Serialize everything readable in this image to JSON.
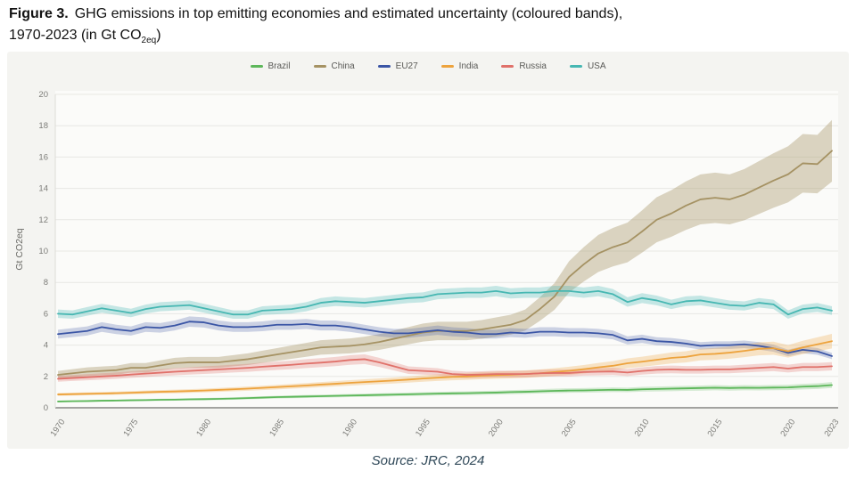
{
  "header": {
    "figure_label": "Figure 3.",
    "title_line1": "GHG emissions in top emitting economies and estimated uncertainty (coloured bands),",
    "title_line2_pre": "1970-2023 (in Gt CO",
    "title_line2_sub": "2eq",
    "title_line2_post": ")"
  },
  "footer": {
    "source": "Source: JRC, 2024"
  },
  "chart_data": {
    "type": "line",
    "title": "GHG emissions in top emitting economies and estimated uncertainty (coloured bands), 1970-2023 (in Gt CO2eq)",
    "xlabel": "",
    "ylabel": "Gt CO2eq",
    "ylim": [
      0,
      20
    ],
    "yticks": [
      0,
      2,
      4,
      6,
      8,
      10,
      12,
      14,
      16,
      18,
      20
    ],
    "xticks": [
      1970,
      1975,
      1980,
      1985,
      1990,
      1995,
      2000,
      2005,
      2010,
      2015,
      2020,
      2023
    ],
    "grid": "horizontal",
    "legend_position": "top-center",
    "uncertainty_bands": true,
    "years": [
      1970,
      1971,
      1972,
      1973,
      1974,
      1975,
      1976,
      1977,
      1978,
      1979,
      1980,
      1981,
      1982,
      1983,
      1984,
      1985,
      1986,
      1987,
      1988,
      1989,
      1990,
      1991,
      1992,
      1993,
      1994,
      1995,
      1996,
      1997,
      1998,
      1999,
      2000,
      2001,
      2002,
      2003,
      2004,
      2005,
      2006,
      2007,
      2008,
      2009,
      2010,
      2011,
      2012,
      2013,
      2014,
      2015,
      2016,
      2017,
      2018,
      2019,
      2020,
      2021,
      2022,
      2023
    ],
    "series": [
      {
        "name": "Brazil",
        "color": "#5db75a",
        "band_pct": 0.13,
        "band_opacity": 0.25,
        "values": [
          0.4,
          0.42,
          0.43,
          0.45,
          0.46,
          0.48,
          0.49,
          0.51,
          0.52,
          0.54,
          0.55,
          0.57,
          0.59,
          0.62,
          0.65,
          0.68,
          0.7,
          0.72,
          0.74,
          0.76,
          0.78,
          0.8,
          0.82,
          0.84,
          0.86,
          0.88,
          0.9,
          0.92,
          0.93,
          0.95,
          0.97,
          1.0,
          1.02,
          1.05,
          1.08,
          1.1,
          1.11,
          1.13,
          1.15,
          1.14,
          1.18,
          1.2,
          1.22,
          1.24,
          1.26,
          1.28,
          1.26,
          1.28,
          1.27,
          1.29,
          1.3,
          1.35,
          1.38,
          1.45
        ]
      },
      {
        "name": "China",
        "color": "#a59263",
        "band_pct": 0.12,
        "band_opacity": 0.38,
        "values": [
          2.1,
          2.2,
          2.3,
          2.35,
          2.4,
          2.55,
          2.55,
          2.7,
          2.85,
          2.9,
          2.9,
          2.9,
          3.0,
          3.1,
          3.25,
          3.4,
          3.55,
          3.7,
          3.85,
          3.9,
          3.95,
          4.05,
          4.2,
          4.4,
          4.6,
          4.8,
          4.9,
          4.9,
          4.9,
          5.0,
          5.15,
          5.3,
          5.6,
          6.3,
          7.1,
          8.35,
          9.15,
          9.85,
          10.25,
          10.55,
          11.25,
          12.0,
          12.4,
          12.9,
          13.3,
          13.4,
          13.3,
          13.6,
          14.05,
          14.5,
          14.9,
          15.6,
          15.55,
          16.4
        ]
      },
      {
        "name": "EU27",
        "color": "#3a55a5",
        "band_pct": 0.06,
        "band_opacity": 0.25,
        "values": [
          4.7,
          4.8,
          4.9,
          5.15,
          5.0,
          4.9,
          5.15,
          5.1,
          5.25,
          5.5,
          5.45,
          5.25,
          5.15,
          5.15,
          5.2,
          5.3,
          5.3,
          5.35,
          5.25,
          5.25,
          5.15,
          5.0,
          4.85,
          4.75,
          4.75,
          4.85,
          4.95,
          4.85,
          4.8,
          4.7,
          4.7,
          4.8,
          4.75,
          4.85,
          4.85,
          4.8,
          4.8,
          4.75,
          4.65,
          4.3,
          4.4,
          4.25,
          4.2,
          4.1,
          3.95,
          4.0,
          4.0,
          4.05,
          3.95,
          3.8,
          3.5,
          3.7,
          3.6,
          3.3
        ]
      },
      {
        "name": "India",
        "color": "#eda33d",
        "band_pct": 0.11,
        "band_opacity": 0.28,
        "values": [
          0.85,
          0.87,
          0.89,
          0.91,
          0.93,
          0.96,
          0.99,
          1.02,
          1.04,
          1.07,
          1.1,
          1.14,
          1.18,
          1.22,
          1.27,
          1.32,
          1.37,
          1.42,
          1.48,
          1.53,
          1.59,
          1.64,
          1.69,
          1.74,
          1.8,
          1.87,
          1.92,
          1.97,
          2.0,
          2.05,
          2.08,
          2.11,
          2.15,
          2.2,
          2.28,
          2.36,
          2.46,
          2.58,
          2.68,
          2.84,
          2.94,
          3.06,
          3.18,
          3.25,
          3.4,
          3.44,
          3.52,
          3.63,
          3.76,
          3.8,
          3.6,
          3.85,
          4.05,
          4.25
        ]
      },
      {
        "name": "Russia",
        "color": "#e0716a",
        "band_pct": 0.1,
        "band_opacity": 0.28,
        "values": [
          1.85,
          1.9,
          1.95,
          2.0,
          2.05,
          2.12,
          2.18,
          2.24,
          2.3,
          2.35,
          2.4,
          2.45,
          2.5,
          2.55,
          2.62,
          2.68,
          2.74,
          2.82,
          2.88,
          2.95,
          3.05,
          3.1,
          2.9,
          2.65,
          2.4,
          2.35,
          2.3,
          2.15,
          2.1,
          2.12,
          2.15,
          2.15,
          2.15,
          2.2,
          2.22,
          2.22,
          2.28,
          2.3,
          2.32,
          2.25,
          2.35,
          2.42,
          2.45,
          2.42,
          2.42,
          2.45,
          2.45,
          2.5,
          2.55,
          2.6,
          2.5,
          2.6,
          2.6,
          2.65
        ]
      },
      {
        "name": "USA",
        "color": "#46b7b2",
        "band_pct": 0.045,
        "band_opacity": 0.3,
        "values": [
          6.0,
          5.95,
          6.15,
          6.35,
          6.2,
          6.05,
          6.3,
          6.45,
          6.5,
          6.55,
          6.35,
          6.15,
          5.95,
          5.95,
          6.2,
          6.25,
          6.3,
          6.45,
          6.7,
          6.8,
          6.75,
          6.7,
          6.8,
          6.9,
          7.0,
          7.05,
          7.25,
          7.3,
          7.35,
          7.35,
          7.45,
          7.3,
          7.35,
          7.35,
          7.45,
          7.45,
          7.35,
          7.45,
          7.25,
          6.75,
          7.0,
          6.85,
          6.6,
          6.8,
          6.85,
          6.7,
          6.55,
          6.5,
          6.7,
          6.6,
          5.95,
          6.3,
          6.4,
          6.2
        ]
      }
    ],
    "source": "Source: JRC, 2024"
  }
}
